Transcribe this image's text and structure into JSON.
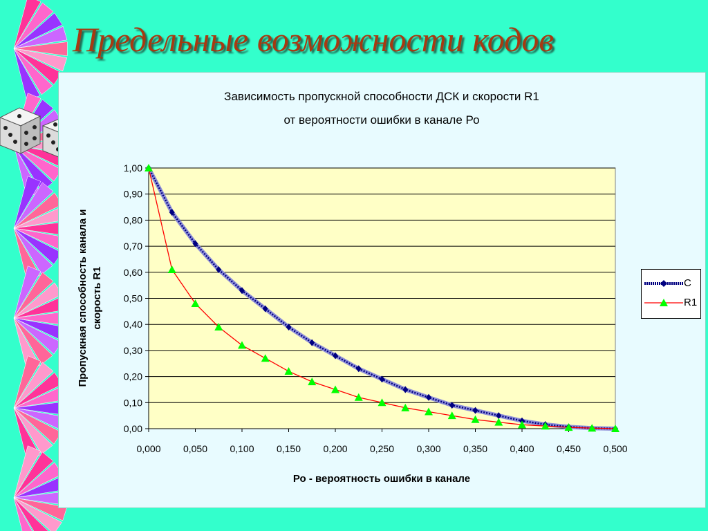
{
  "slide": {
    "title": "Предельные возможности кодов"
  },
  "colors": {
    "background": "#33ffcc",
    "title": "#a63a12",
    "plot_area": "#ffffc6",
    "series_c": "#000080",
    "series_r1": "#ff0000",
    "marker_r1": "#00ff00"
  },
  "icons": [
    "dice-icon",
    "ribbon-decoration"
  ],
  "chart_data": {
    "type": "line",
    "title_lines": [
      "Зависимость пропускной  способности  ДСК  и  скорости  R1",
      "от вероятности ошибки в канале Ро"
    ],
    "xlabel": "Ро - вероятность ошибки в канале",
    "ylabel_lines": [
      "Пропускная способность канала  и",
      "скорость R1"
    ],
    "x": [
      0.0,
      0.025,
      0.05,
      0.075,
      0.1,
      0.125,
      0.15,
      0.175,
      0.2,
      0.225,
      0.25,
      0.275,
      0.3,
      0.325,
      0.35,
      0.375,
      0.4,
      0.425,
      0.45,
      0.475,
      0.5
    ],
    "xlim": [
      0,
      0.5
    ],
    "ylim": [
      0,
      1
    ],
    "x_ticks": [
      "0,000",
      "0,050",
      "0,100",
      "0,150",
      "0,200",
      "0,250",
      "0,300",
      "0,350",
      "0,400",
      "0,450",
      "0,500"
    ],
    "y_ticks": [
      "0,00",
      "0,10",
      "0,20",
      "0,30",
      "0,40",
      "0,50",
      "0,60",
      "0,70",
      "0,80",
      "0,90",
      "1,00"
    ],
    "grid": true,
    "legend_position": "right",
    "series": [
      {
        "name": "C",
        "marker": "diamond",
        "values": [
          1.0,
          0.83,
          0.71,
          0.61,
          0.53,
          0.46,
          0.39,
          0.33,
          0.28,
          0.23,
          0.19,
          0.15,
          0.12,
          0.09,
          0.07,
          0.05,
          0.03,
          0.016,
          0.007,
          0.002,
          0.0
        ]
      },
      {
        "name": "R1",
        "marker": "triangle",
        "values": [
          1.0,
          0.61,
          0.48,
          0.39,
          0.32,
          0.27,
          0.22,
          0.18,
          0.15,
          0.12,
          0.1,
          0.08,
          0.065,
          0.05,
          0.035,
          0.025,
          0.015,
          0.01,
          0.005,
          0.002,
          0.0
        ]
      }
    ]
  }
}
